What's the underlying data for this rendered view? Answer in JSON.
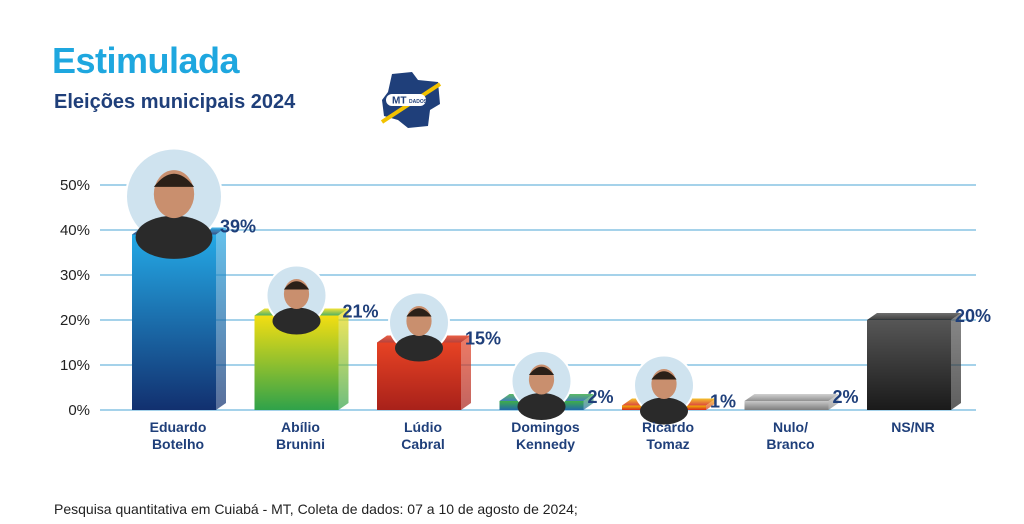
{
  "header": {
    "title": "Estimulada",
    "subtitle": "Eleições municipais 2024",
    "logo_text": "MT DADOS"
  },
  "footnote": "Pesquisa quantitativa em Cuiabá - MT, Coleta de dados: 07 a 10 de agosto de 2024;",
  "colors": {
    "title": "#1ea7df",
    "subtitle": "#1f3f7a",
    "value_label": "#1f3f7a",
    "gridline": "#6fb8dd"
  },
  "chart_data": {
    "type": "bar",
    "title": "Estimulada",
    "subtitle": "Eleições municipais 2024",
    "ylim": [
      0,
      50
    ],
    "yticks": [
      "0%",
      "10%",
      "20%",
      "30%",
      "40%",
      "50%"
    ],
    "grid": true,
    "categories": [
      [
        "Eduardo",
        "Botelho"
      ],
      [
        "Abílio",
        "Brunini"
      ],
      [
        "Lúdio",
        "Cabral"
      ],
      [
        "Domingos",
        "Kennedy"
      ],
      [
        "Ricardo",
        "Tomaz"
      ],
      [
        "Nulo/",
        "Branco"
      ],
      [
        "NS/NR"
      ]
    ],
    "values": [
      39,
      21,
      15,
      2,
      1,
      2,
      20
    ],
    "value_labels": [
      "39%",
      "21%",
      "15%",
      "2%",
      "1%",
      "2%",
      "20%"
    ],
    "bar_styles": [
      "blue",
      "yellow-green",
      "red",
      "green",
      "yellow-red",
      "gray",
      "dark"
    ],
    "has_photo": [
      true,
      true,
      true,
      true,
      true,
      false,
      false
    ]
  }
}
